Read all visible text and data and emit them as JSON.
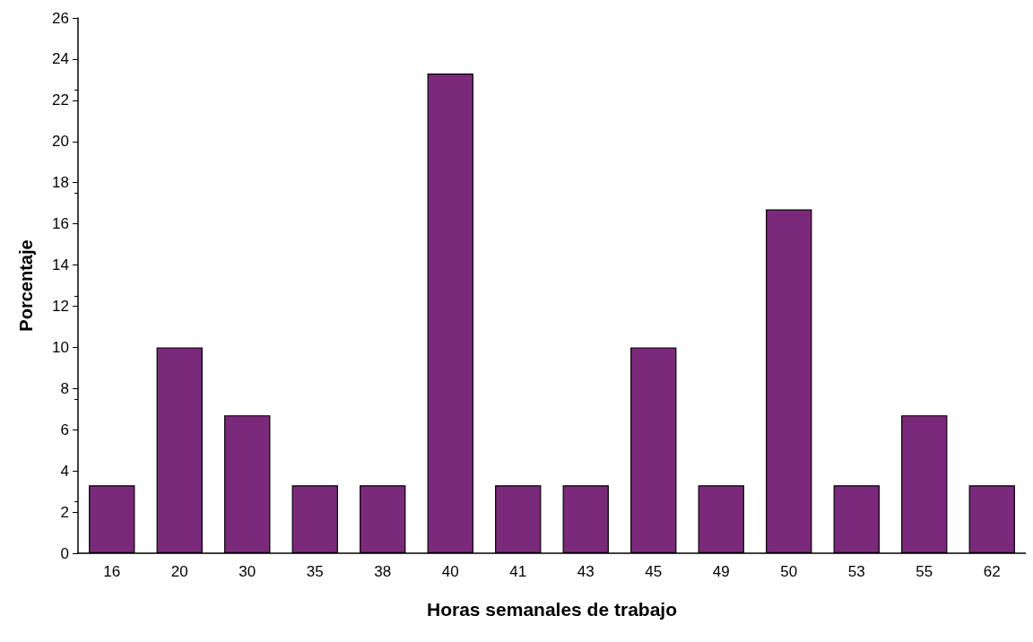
{
  "chart_data": {
    "type": "bar",
    "xlabel": "Horas semanales de trabajo",
    "ylabel": "Porcentaje",
    "categories": [
      "16",
      "20",
      "30",
      "35",
      "38",
      "40",
      "41",
      "43",
      "45",
      "49",
      "50",
      "53",
      "55",
      "62"
    ],
    "values": [
      3.3,
      10,
      6.7,
      3.3,
      3.3,
      23.3,
      3.3,
      3.3,
      10,
      3.3,
      16.7,
      3.3,
      6.7,
      3.3
    ],
    "color": "#7b2a7b",
    "ylim": [
      0,
      26
    ],
    "yticks": [
      0,
      2,
      4,
      6,
      8,
      10,
      12,
      14,
      16,
      18,
      20,
      22,
      24,
      26
    ],
    "grid": false
  }
}
